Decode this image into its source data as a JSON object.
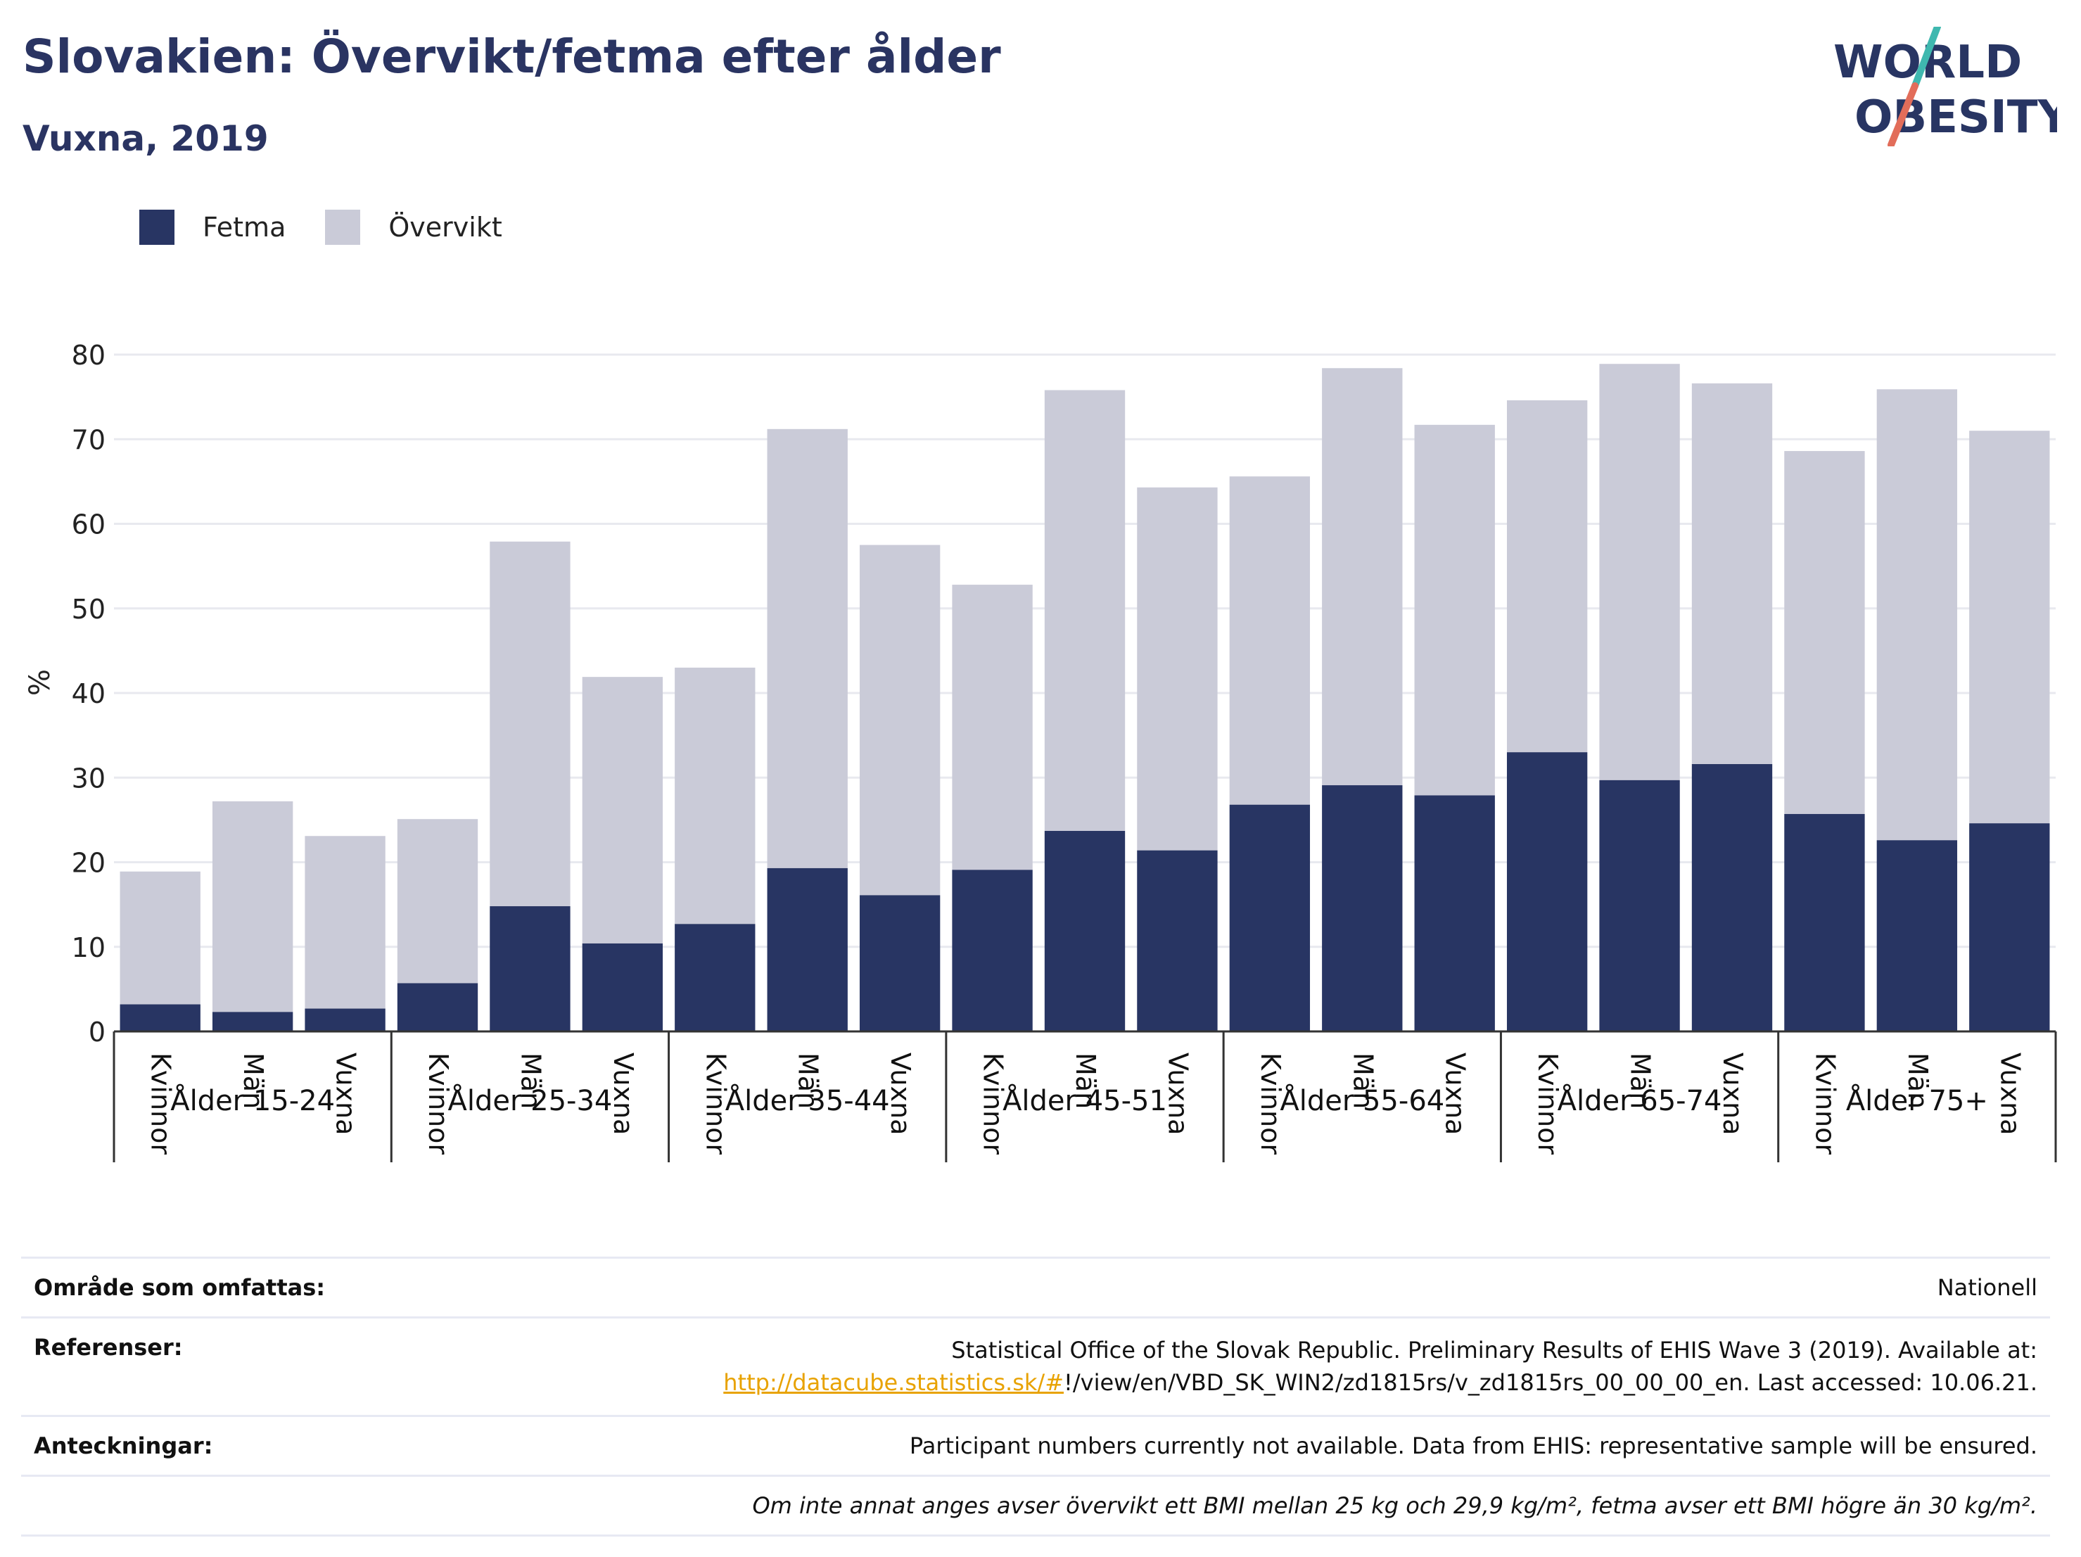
{
  "title": "Slovakien: Övervikt/fetma efter ålder",
  "subtitle": "Vuxna, 2019",
  "logo": {
    "line1": "WORLD",
    "line2": "OBESITY"
  },
  "colors": {
    "fetma": "#283563",
    "overvikt": "#cacbd8",
    "accent_teal": "#3fb8af",
    "accent_red": "#e26d5a"
  },
  "legend": [
    {
      "label": "Fetma",
      "color": "#283563"
    },
    {
      "label": "Övervikt",
      "color": "#cacbd8"
    }
  ],
  "chart_data": {
    "type": "bar",
    "stacked": true,
    "ylabel": "%",
    "ylim": [
      0,
      80
    ],
    "yticks": [
      0,
      10,
      20,
      30,
      40,
      50,
      60,
      70,
      80
    ],
    "grid": true,
    "legend_position": "top-left",
    "groups": [
      "Ålder 15-24",
      "Ålder 25-34",
      "Ålder 35-44",
      "Ålder 45-51",
      "Ålder 55-64",
      "Ålder 65-74",
      "Ålder 75+"
    ],
    "subcategories": [
      "Kvinnor",
      "Män",
      "Vuxna"
    ],
    "series": [
      {
        "name": "Fetma",
        "values": [
          3.2,
          2.3,
          2.7,
          5.7,
          14.8,
          10.4,
          12.7,
          19.3,
          16.1,
          19.1,
          23.7,
          21.4,
          26.8,
          29.1,
          27.9,
          33.0,
          29.7,
          31.6,
          25.7,
          22.6,
          24.6
        ]
      },
      {
        "name": "Övervikt",
        "values": [
          15.7,
          24.9,
          20.4,
          19.4,
          43.1,
          31.5,
          30.3,
          51.9,
          41.4,
          33.7,
          52.1,
          42.9,
          38.8,
          49.3,
          43.8,
          41.6,
          49.2,
          45.0,
          42.9,
          53.3,
          46.4
        ]
      }
    ]
  },
  "footer": {
    "coverage": {
      "label": "Område som omfattas:",
      "value": "Nationell"
    },
    "references": {
      "label": "Referenser:",
      "text_before": "Statistical Office of the Slovak Republic. Preliminary Results of EHIS Wave 3 (2019). Available at: ",
      "link": "http://datacube.statistics.sk/#",
      "text_after": "!/view/en/VBD_SK_WIN2/zd1815rs/v_zd1815rs_00_00_00_en. Last accessed: 10.06.21."
    },
    "notes": {
      "label": "Anteckningar:",
      "value": "Participant numbers currently not available. Data from EHIS: representative sample will be ensured."
    },
    "definition": "Om inte annat anges avser övervikt ett BMI mellan 25 kg och 29,9 kg/m², fetma avser ett BMI högre än 30 kg/m²."
  }
}
